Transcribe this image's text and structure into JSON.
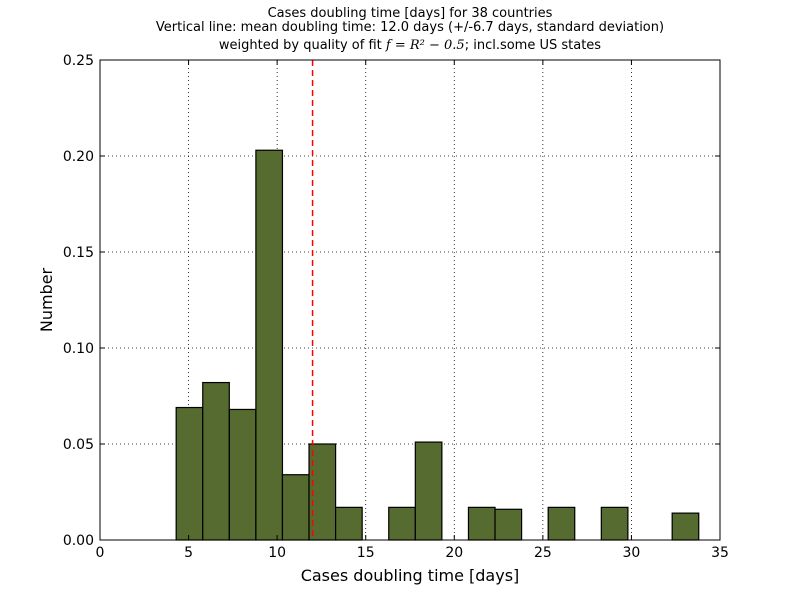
{
  "chart_data": {
    "type": "bar",
    "title_lines": [
      "Cases doubling time [days] for 38 countries",
      "Vertical line: mean doubling time: 12.0 days (+/-6.7 days, standard deviation)"
    ],
    "title3_prefix": "weighted by quality of fit ",
    "title3_math": "f = R² − 0.5",
    "title3_suffix": "; incl.some US states",
    "xlabel": "Cases doubling time [days]",
    "ylabel": "Number",
    "xlim": [
      0,
      35
    ],
    "ylim": [
      0,
      0.25
    ],
    "xticks": [
      0,
      5,
      10,
      15,
      20,
      25,
      30,
      35
    ],
    "yticks": [
      0.0,
      0.05,
      0.1,
      0.15,
      0.2,
      0.25
    ],
    "ytick_labels": [
      "0.00",
      "0.05",
      "0.10",
      "0.15",
      "0.20",
      "0.25"
    ],
    "grid": true,
    "bar_color": "#556b2f",
    "bins": [
      {
        "x0": 4.3,
        "x1": 5.8,
        "value": 0.069
      },
      {
        "x0": 5.8,
        "x1": 7.3,
        "value": 0.082
      },
      {
        "x0": 7.3,
        "x1": 8.8,
        "value": 0.068
      },
      {
        "x0": 8.8,
        "x1": 10.3,
        "value": 0.203
      },
      {
        "x0": 10.3,
        "x1": 11.8,
        "value": 0.034
      },
      {
        "x0": 11.8,
        "x1": 13.3,
        "value": 0.05
      },
      {
        "x0": 13.3,
        "x1": 14.8,
        "value": 0.017
      },
      {
        "x0": 16.3,
        "x1": 17.8,
        "value": 0.017
      },
      {
        "x0": 17.8,
        "x1": 19.3,
        "value": 0.051
      },
      {
        "x0": 20.8,
        "x1": 22.3,
        "value": 0.017
      },
      {
        "x0": 22.3,
        "x1": 23.8,
        "value": 0.016
      },
      {
        "x0": 25.3,
        "x1": 26.8,
        "value": 0.017
      },
      {
        "x0": 28.3,
        "x1": 29.8,
        "value": 0.017
      },
      {
        "x0": 32.3,
        "x1": 33.8,
        "value": 0.014
      }
    ],
    "mean_line": {
      "x": 12.0,
      "color": "#ff0000"
    }
  }
}
